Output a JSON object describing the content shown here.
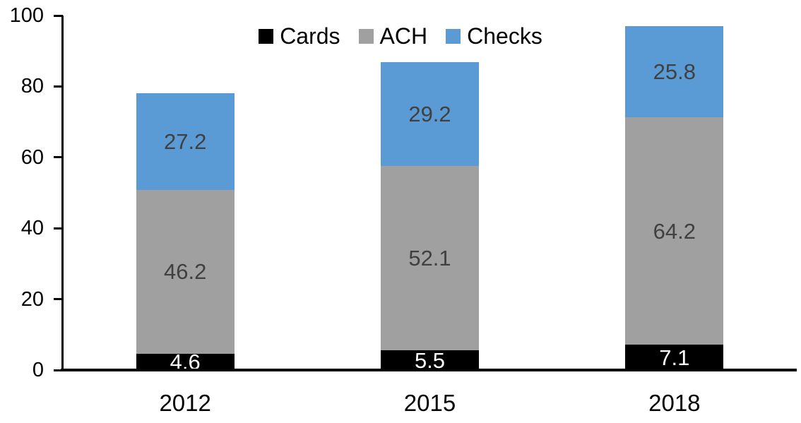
{
  "chart_data": {
    "type": "bar",
    "stacked": true,
    "title": "",
    "categories": [
      "2012",
      "2015",
      "2018"
    ],
    "series": [
      {
        "name": "Cards",
        "color": "#000000",
        "label_color": "#ffffff",
        "values": [
          4.6,
          5.5,
          7.1
        ]
      },
      {
        "name": "ACH",
        "color": "#a0a0a0",
        "label_color": "#404040",
        "values": [
          46.2,
          52.1,
          64.2
        ]
      },
      {
        "name": "Checks",
        "color": "#5b9bd5",
        "label_color": "#404040",
        "values": [
          27.2,
          29.2,
          25.8
        ]
      }
    ],
    "totals": [
      78.0,
      86.8,
      97.1
    ],
    "xlabel": "",
    "ylabel": "",
    "ylim": [
      0,
      100
    ],
    "yticks": [
      0,
      20,
      40,
      60,
      80,
      100
    ],
    "grid": false,
    "legend_position": "top-center",
    "data_labels_shown": true,
    "axis_color": "#000000",
    "background_color": "#ffffff"
  }
}
